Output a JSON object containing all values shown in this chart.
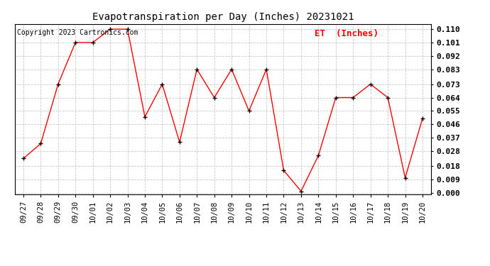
{
  "title": "Evapotranspiration per Day (Inches) 20231021",
  "copyright": "Copyright 2023 Cartronics.com",
  "legend_label": "ET  (Inches)",
  "x_labels": [
    "09/27",
    "09/28",
    "09/29",
    "09/30",
    "10/01",
    "10/02",
    "10/03",
    "10/04",
    "10/05",
    "10/06",
    "10/07",
    "10/08",
    "10/09",
    "10/10",
    "10/11",
    "10/12",
    "10/13",
    "10/14",
    "10/15",
    "10/16",
    "10/17",
    "10/18",
    "10/19",
    "10/20"
  ],
  "y_values": [
    0.023,
    0.033,
    0.073,
    0.101,
    0.101,
    0.11,
    0.11,
    0.051,
    0.073,
    0.034,
    0.083,
    0.064,
    0.083,
    0.055,
    0.083,
    0.015,
    0.001,
    0.025,
    0.064,
    0.064,
    0.073,
    0.064,
    0.01,
    0.05
  ],
  "ylim": [
    -0.001,
    0.1135
  ],
  "yticks": [
    0.0,
    0.009,
    0.018,
    0.028,
    0.037,
    0.046,
    0.055,
    0.064,
    0.073,
    0.083,
    0.092,
    0.101,
    0.11
  ],
  "line_color": "red",
  "marker_color": "black",
  "grid_color": "#bbbbbb",
  "background_color": "#ffffff",
  "title_fontsize": 10,
  "copyright_fontsize": 7,
  "legend_fontsize": 9,
  "tick_fontsize": 7.5,
  "ytick_fontsize": 8
}
